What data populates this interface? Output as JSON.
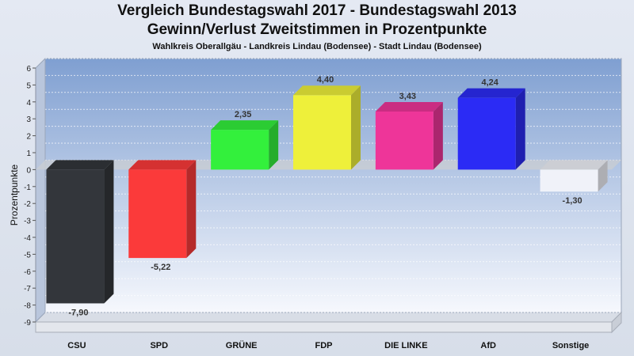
{
  "chart_data": {
    "type": "bar",
    "title": "Vergleich Bundestagswahl 2017 - Bundestagswahl 2013",
    "subtitle": "Gewinn/Verlust Zweitstimmen in Prozentpunkte",
    "subtitle2": "Wahlkreis Oberallgäu - Landkreis Lindau (Bodensee) - Stadt Lindau (Bodensee)",
    "ylabel": "Prozentpunkte",
    "xlabel": "",
    "ylim": [
      -9,
      6
    ],
    "yticks": [
      6,
      5,
      4,
      3,
      2,
      1,
      0,
      -1,
      -2,
      -3,
      -4,
      -5,
      -6,
      -7,
      -8,
      -9
    ],
    "grid": true,
    "categories": [
      "CSU",
      "SPD",
      "GRÜNE",
      "FDP",
      "DIE LINKE",
      "AfD",
      "Sonstige"
    ],
    "values": [
      -7.9,
      -5.22,
      2.35,
      4.4,
      3.43,
      4.24,
      -1.3
    ],
    "value_labels": [
      "-7,90",
      "-5,22",
      "2,35",
      "4,40",
      "3,43",
      "4,24",
      "-1,30"
    ],
    "colors": [
      "#33363b",
      "#fb3a3a",
      "#33f03c",
      "#eef03a",
      "#ee3599",
      "#2b2bf5",
      "#f0f2f9"
    ]
  }
}
